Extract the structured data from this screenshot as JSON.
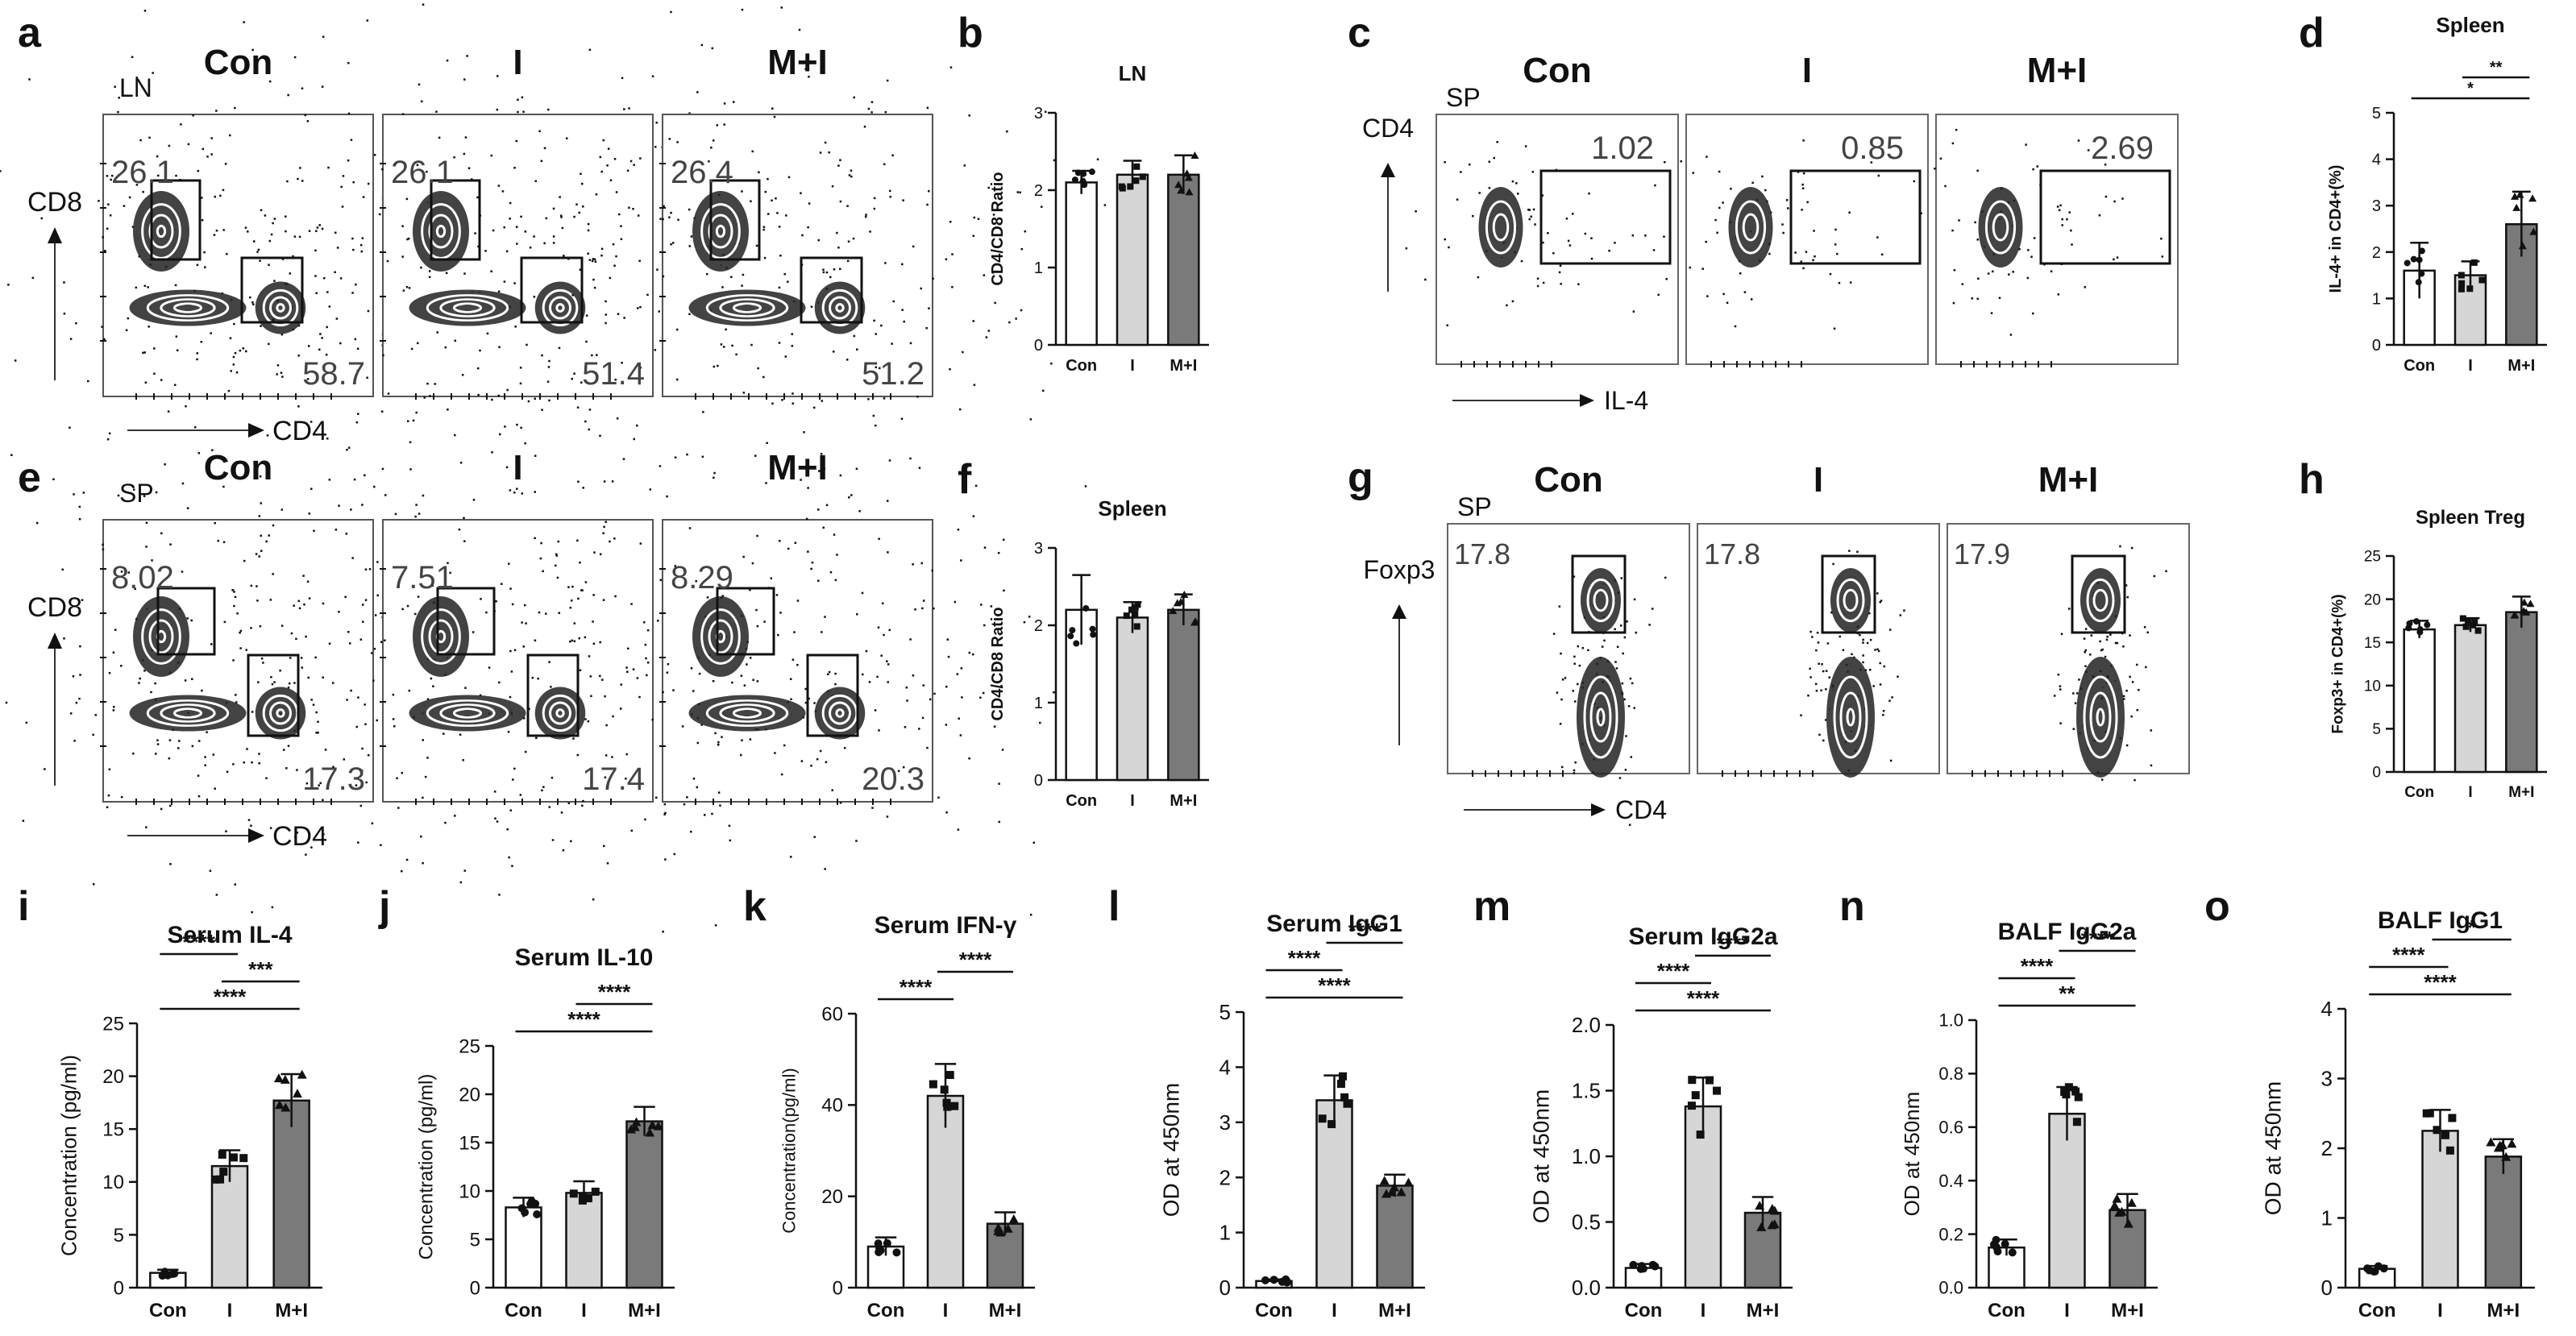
{
  "figure": {
    "panel_letters": [
      "a",
      "b",
      "c",
      "d",
      "e",
      "f",
      "g",
      "h",
      "i",
      "j",
      "k",
      "l",
      "m",
      "n",
      "o"
    ]
  },
  "flow_plots": [
    {
      "id": "a",
      "tissue": "LN",
      "groups": [
        "Con",
        "I",
        "M+I"
      ],
      "xlabel": "CD4",
      "ylabel": "CD8",
      "gates": [
        {
          "upper": "26.1",
          "lower": "58.7"
        },
        {
          "upper": "26.1",
          "lower": "51.4"
        },
        {
          "upper": "26.4",
          "lower": "51.2"
        }
      ]
    },
    {
      "id": "c",
      "tissue": "SP",
      "groups": [
        "Con",
        "I",
        "M+I"
      ],
      "xlabel": "IL-4",
      "ylabel": "CD4",
      "gates": [
        {
          "value": "1.02"
        },
        {
          "value": "0.85"
        },
        {
          "value": "2.69"
        }
      ]
    },
    {
      "id": "e",
      "tissue": "SP",
      "groups": [
        "Con",
        "I",
        "M+I"
      ],
      "xlabel": "CD4",
      "ylabel": "CD8",
      "gates": [
        {
          "upper": "8.02",
          "lower": "17.3"
        },
        {
          "upper": "7.51",
          "lower": "17.4"
        },
        {
          "upper": "8.29",
          "lower": "20.3"
        }
      ]
    },
    {
      "id": "g",
      "tissue": "SP",
      "groups": [
        "Con",
        "I",
        "M+I"
      ],
      "xlabel": "CD4",
      "ylabel": "Foxp3",
      "gates": [
        {
          "value": "17.8"
        },
        {
          "value": "17.8"
        },
        {
          "value": "17.9"
        }
      ]
    }
  ],
  "chart_data": [
    {
      "id": "b",
      "type": "bar",
      "title": "LN",
      "ylabel": "CD4/CD8 Ratio",
      "categories": [
        "Con",
        "I",
        "M+I"
      ],
      "values": [
        2.1,
        2.2,
        2.2
      ],
      "errors": [
        0.15,
        0.18,
        0.25
      ],
      "ylim": [
        0,
        3
      ],
      "yticks": [
        "0",
        "1",
        "2",
        "3"
      ],
      "significance": []
    },
    {
      "id": "d",
      "type": "bar",
      "title": "Spleen",
      "ylabel": "IL-4+ in CD4+(%)",
      "categories": [
        "Con",
        "I",
        "M+I"
      ],
      "values": [
        1.6,
        1.5,
        2.6
      ],
      "errors": [
        0.6,
        0.3,
        0.7
      ],
      "ylim": [
        0,
        5
      ],
      "yticks": [
        "0",
        "1",
        "2",
        "3",
        "4",
        "5"
      ],
      "significance": [
        {
          "from": 0,
          "to": 2,
          "label": "*"
        },
        {
          "from": 1,
          "to": 2,
          "label": "**"
        }
      ]
    },
    {
      "id": "f",
      "type": "bar",
      "title": "Spleen",
      "ylabel": "CD4/CD8 Ratio",
      "categories": [
        "Con",
        "I",
        "M+I"
      ],
      "values": [
        2.2,
        2.1,
        2.2
      ],
      "errors": [
        0.45,
        0.2,
        0.2
      ],
      "ylim": [
        0,
        3
      ],
      "yticks": [
        "0",
        "1",
        "2",
        "3"
      ],
      "significance": []
    },
    {
      "id": "h",
      "type": "bar",
      "title": "Spleen Treg",
      "ylabel": "Foxp3+ in CD4+(%)",
      "categories": [
        "Con",
        "I",
        "M+I"
      ],
      "values": [
        16.5,
        17.0,
        18.5
      ],
      "errors": [
        1.0,
        0.8,
        1.8
      ],
      "ylim": [
        0,
        25
      ],
      "yticks": [
        "0",
        "5",
        "10",
        "15",
        "20",
        "25"
      ],
      "significance": []
    },
    {
      "id": "i",
      "type": "bar",
      "title": "Serum IL-4",
      "ylabel": "Concentration (pg/ml)",
      "categories": [
        "Con",
        "I",
        "M+I"
      ],
      "values": [
        1.4,
        11.5,
        17.7
      ],
      "errors": [
        0.3,
        1.5,
        2.5
      ],
      "ylim": [
        0,
        25
      ],
      "yticks": [
        "0",
        "5",
        "10",
        "15",
        "20",
        "25"
      ],
      "significance": [
        {
          "from": 0,
          "to": 2,
          "label": "****"
        },
        {
          "from": 1,
          "to": 2,
          "label": "***"
        },
        {
          "from": 0,
          "to": 1,
          "label": "****"
        }
      ]
    },
    {
      "id": "j",
      "type": "bar",
      "title": "Serum IL-10",
      "ylabel": "Concentration (pg/ml)",
      "categories": [
        "Con",
        "I",
        "M+I"
      ],
      "values": [
        8.3,
        9.8,
        17.2
      ],
      "errors": [
        1.0,
        1.2,
        1.5
      ],
      "ylim": [
        0,
        25
      ],
      "yticks": [
        "0",
        "5",
        "10",
        "15",
        "20",
        "25"
      ],
      "significance": [
        {
          "from": 0,
          "to": 2,
          "label": "****"
        },
        {
          "from": 1,
          "to": 2,
          "label": "****"
        }
      ]
    },
    {
      "id": "k",
      "type": "bar",
      "title": "Serum IFN-γ",
      "ylabel": "Concentration(pg/ml)",
      "categories": [
        "Con",
        "I",
        "M+I"
      ],
      "values": [
        9,
        42,
        14
      ],
      "errors": [
        2,
        7,
        2.5
      ],
      "ylim": [
        0,
        60
      ],
      "yticks": [
        "0",
        "20",
        "40",
        "60"
      ],
      "significance": [
        {
          "from": 0,
          "to": 1,
          "label": "****"
        },
        {
          "from": 1,
          "to": 2,
          "label": "****"
        }
      ]
    },
    {
      "id": "l",
      "type": "bar",
      "title": "Serum IgG1",
      "ylabel": "OD at 450nm",
      "categories": [
        "Con",
        "I",
        "M+I"
      ],
      "values": [
        0.12,
        3.4,
        1.85
      ],
      "errors": [
        0.03,
        0.45,
        0.2
      ],
      "ylim": [
        0,
        5
      ],
      "yticks": [
        "0",
        "1",
        "2",
        "3",
        "4",
        "5"
      ],
      "significance": [
        {
          "from": 0,
          "to": 2,
          "label": "****"
        },
        {
          "from": 0,
          "to": 1,
          "label": "****"
        },
        {
          "from": 1,
          "to": 2,
          "label": "****"
        }
      ]
    },
    {
      "id": "m",
      "type": "bar",
      "title": "Serum IgG2a",
      "ylabel": "OD at 450nm",
      "categories": [
        "Con",
        "I",
        "M+I"
      ],
      "values": [
        0.15,
        1.38,
        0.57
      ],
      "errors": [
        0.03,
        0.22,
        0.12
      ],
      "ylim": [
        0,
        2
      ],
      "yticks": [
        "0.0",
        "0.5",
        "1.0",
        "1.5",
        "2.0"
      ],
      "significance": [
        {
          "from": 0,
          "to": 2,
          "label": "****"
        },
        {
          "from": 0,
          "to": 1,
          "label": "****"
        },
        {
          "from": 1,
          "to": 2,
          "label": "****"
        }
      ]
    },
    {
      "id": "n",
      "type": "bar",
      "title": "BALF IgG2a",
      "ylabel": "OD at 450nm",
      "categories": [
        "Con",
        "I",
        "M+I"
      ],
      "values": [
        0.15,
        0.65,
        0.29
      ],
      "errors": [
        0.03,
        0.1,
        0.06
      ],
      "ylim": [
        0,
        1
      ],
      "yticks": [
        "0.0",
        "0.2",
        "0.4",
        "0.6",
        "0.8",
        "1.0"
      ],
      "significance": [
        {
          "from": 0,
          "to": 2,
          "label": "**"
        },
        {
          "from": 0,
          "to": 1,
          "label": "****"
        },
        {
          "from": 1,
          "to": 2,
          "label": "****"
        }
      ]
    },
    {
      "id": "o",
      "type": "bar",
      "title": "BALF IgG1",
      "ylabel": "OD at 450nm",
      "categories": [
        "Con",
        "I",
        "M+I"
      ],
      "values": [
        0.27,
        2.25,
        1.88
      ],
      "errors": [
        0.04,
        0.3,
        0.25
      ],
      "ylim": [
        0,
        4
      ],
      "yticks": [
        "0",
        "1",
        "2",
        "3",
        "4"
      ],
      "significance": [
        {
          "from": 0,
          "to": 2,
          "label": "****"
        },
        {
          "from": 0,
          "to": 1,
          "label": "****"
        },
        {
          "from": 1,
          "to": 2,
          "label": "*"
        }
      ]
    }
  ],
  "colors": {
    "bar_con": "#ffffff",
    "bar_i": "#d6d6d6",
    "bar_mi": "#7a7a7a",
    "ink": "#111111"
  }
}
